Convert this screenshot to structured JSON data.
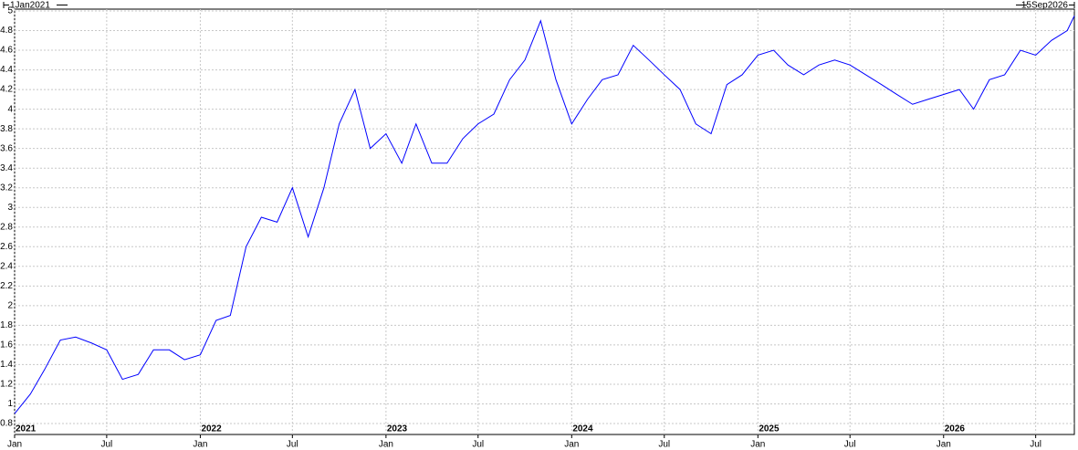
{
  "chart_data": {
    "type": "line",
    "start_label": "1Jan2021",
    "end_label": "15Sep2026",
    "xlim": [
      "2021-01-01",
      "2026-09-15"
    ],
    "ylim": [
      0.8,
      5
    ],
    "yticks": [
      0.8,
      1,
      1.2,
      1.4,
      1.6,
      1.8,
      2,
      2.2,
      2.4,
      2.6,
      2.8,
      3,
      3.2,
      3.4,
      3.6,
      3.8,
      4,
      4.2,
      4.4,
      4.6,
      4.8,
      5
    ],
    "xticks": [
      {
        "value": "2021-01-01",
        "label": "Jan"
      },
      {
        "value": "2021-07-01",
        "label": "Jul"
      },
      {
        "value": "2022-01-01",
        "label": "Jan"
      },
      {
        "value": "2022-07-01",
        "label": "Jul"
      },
      {
        "value": "2023-01-01",
        "label": "Jan"
      },
      {
        "value": "2023-07-01",
        "label": "Jul"
      },
      {
        "value": "2024-01-01",
        "label": "Jan"
      },
      {
        "value": "2024-07-01",
        "label": "Jul"
      },
      {
        "value": "2025-01-01",
        "label": "Jan"
      },
      {
        "value": "2025-07-01",
        "label": "Jul"
      },
      {
        "value": "2026-01-01",
        "label": "Jan"
      },
      {
        "value": "2026-07-01",
        "label": "Jul"
      }
    ],
    "year_ticks": [
      {
        "value": "2021-01-01",
        "label": "2021"
      },
      {
        "value": "2022-01-01",
        "label": "2022"
      },
      {
        "value": "2023-01-01",
        "label": "2023"
      },
      {
        "value": "2024-01-01",
        "label": "2024"
      },
      {
        "value": "2025-01-01",
        "label": "2025"
      },
      {
        "value": "2026-01-01",
        "label": "2026"
      }
    ],
    "grid": true,
    "series": [
      {
        "name": "series",
        "color": "#0000ff",
        "x": [
          "2021-01-01",
          "2021-02-01",
          "2021-03-01",
          "2021-04-01",
          "2021-05-01",
          "2021-06-01",
          "2021-07-01",
          "2021-08-01",
          "2021-09-01",
          "2021-10-01",
          "2021-11-01",
          "2021-12-01",
          "2022-01-01",
          "2022-02-01",
          "2022-03-01",
          "2022-04-01",
          "2022-05-01",
          "2022-06-01",
          "2022-07-01",
          "2022-08-01",
          "2022-09-01",
          "2022-10-01",
          "2022-11-01",
          "2022-12-01",
          "2023-01-01",
          "2023-02-01",
          "2023-03-01",
          "2023-04-01",
          "2023-05-01",
          "2023-06-01",
          "2023-07-01",
          "2023-08-01",
          "2023-09-01",
          "2023-10-01",
          "2023-11-01",
          "2023-12-01",
          "2024-01-01",
          "2024-02-01",
          "2024-03-01",
          "2024-04-01",
          "2024-05-01",
          "2024-06-01",
          "2024-07-01",
          "2024-08-01",
          "2024-09-01",
          "2024-10-01",
          "2024-11-01",
          "2024-12-01",
          "2025-01-01",
          "2025-02-01",
          "2025-03-01",
          "2025-04-01",
          "2025-05-01",
          "2025-06-01",
          "2025-07-01",
          "2025-08-01",
          "2025-09-01",
          "2025-10-01",
          "2025-11-01",
          "2025-12-01",
          "2026-01-01",
          "2026-02-01",
          "2026-03-01",
          "2026-04-01",
          "2026-05-01",
          "2026-06-01",
          "2026-07-01",
          "2026-08-01",
          "2026-09-01",
          "2026-09-15"
        ],
        "values": [
          0.9,
          1.1,
          1.35,
          1.65,
          1.68,
          1.62,
          1.55,
          1.25,
          1.3,
          1.55,
          1.55,
          1.45,
          1.5,
          1.85,
          1.9,
          2.6,
          2.9,
          2.85,
          3.2,
          2.7,
          3.2,
          3.85,
          4.2,
          3.6,
          3.75,
          3.45,
          3.85,
          3.45,
          3.45,
          3.7,
          3.85,
          3.95,
          4.3,
          4.5,
          4.9,
          4.3,
          3.85,
          4.1,
          4.3,
          4.35,
          4.65,
          4.5,
          4.35,
          4.2,
          3.85,
          3.75,
          4.25,
          4.35,
          4.55,
          4.6,
          4.45,
          4.35,
          4.45,
          4.5,
          4.45,
          4.35,
          4.25,
          4.15,
          4.05,
          4.1,
          4.15,
          4.2,
          4.0,
          4.3,
          4.35,
          4.6,
          4.55,
          4.7,
          4.8,
          4.95
        ]
      }
    ]
  }
}
